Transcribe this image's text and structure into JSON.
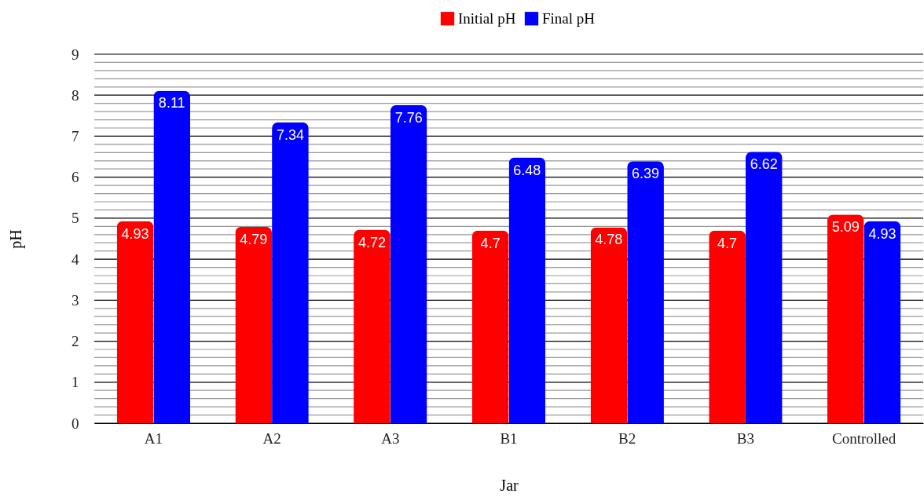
{
  "chart_data": {
    "type": "bar",
    "xlabel": "Jar",
    "ylabel": "pH",
    "categories": [
      "A1",
      "A2",
      "A3",
      "B1",
      "B2",
      "B3",
      "Controlled"
    ],
    "series": [
      {
        "name": "Initial pH",
        "color": "#ff0000",
        "values": [
          4.93,
          4.79,
          4.72,
          4.7,
          4.78,
          4.7,
          5.09
        ]
      },
      {
        "name": "Final pH",
        "color": "#0000ff",
        "values": [
          8.11,
          7.34,
          7.76,
          6.48,
          6.39,
          6.62,
          4.93
        ]
      }
    ],
    "ylim": [
      0,
      9
    ],
    "yticks": [
      0,
      {
        "value": 0.2,
        "label": null
      },
      {
        "value": 0.4,
        "label": null
      },
      {
        "value": 0.6,
        "label": null
      },
      {
        "value": 0.8,
        "label": null
      },
      1,
      {
        "value": 1.2,
        "label": null
      },
      {
        "value": 1.4,
        "label": null
      },
      {
        "value": 1.6,
        "label": null
      },
      {
        "value": 1.8,
        "label": null
      },
      2,
      {
        "value": 2.2,
        "label": null
      },
      {
        "value": 2.4,
        "label": null
      },
      {
        "value": 2.6,
        "label": null
      },
      {
        "value": 2.8,
        "label": null
      },
      3,
      {
        "value": 3.2,
        "label": null
      },
      {
        "value": 3.4,
        "label": null
      },
      {
        "value": 3.6,
        "label": null
      },
      {
        "value": 3.8,
        "label": null
      },
      4,
      {
        "value": 4.2,
        "label": null
      },
      {
        "value": 4.4,
        "label": null
      },
      {
        "value": 4.6,
        "label": null
      },
      {
        "value": 4.8,
        "label": null
      },
      5,
      {
        "value": 5.2,
        "label": null
      },
      {
        "value": 5.4,
        "label": null
      },
      {
        "value": 5.6,
        "label": null
      },
      {
        "value": 5.8,
        "label": null
      },
      6,
      {
        "value": 6.2,
        "label": null
      },
      {
        "value": 6.4,
        "label": null
      },
      {
        "value": 6.6,
        "label": null
      },
      {
        "value": 6.8,
        "label": null
      },
      7,
      {
        "value": 7.2,
        "label": null
      },
      {
        "value": 7.4,
        "label": null
      },
      {
        "value": 7.6,
        "label": null
      },
      {
        "value": 7.8,
        "label": null
      },
      8,
      {
        "value": 8.2,
        "label": null
      },
      {
        "value": 8.4,
        "label": null
      },
      {
        "value": 8.6,
        "label": null
      },
      {
        "value": 8.8,
        "label": null
      },
      9
    ],
    "grid": true,
    "legend": "top",
    "data_labels": true
  }
}
